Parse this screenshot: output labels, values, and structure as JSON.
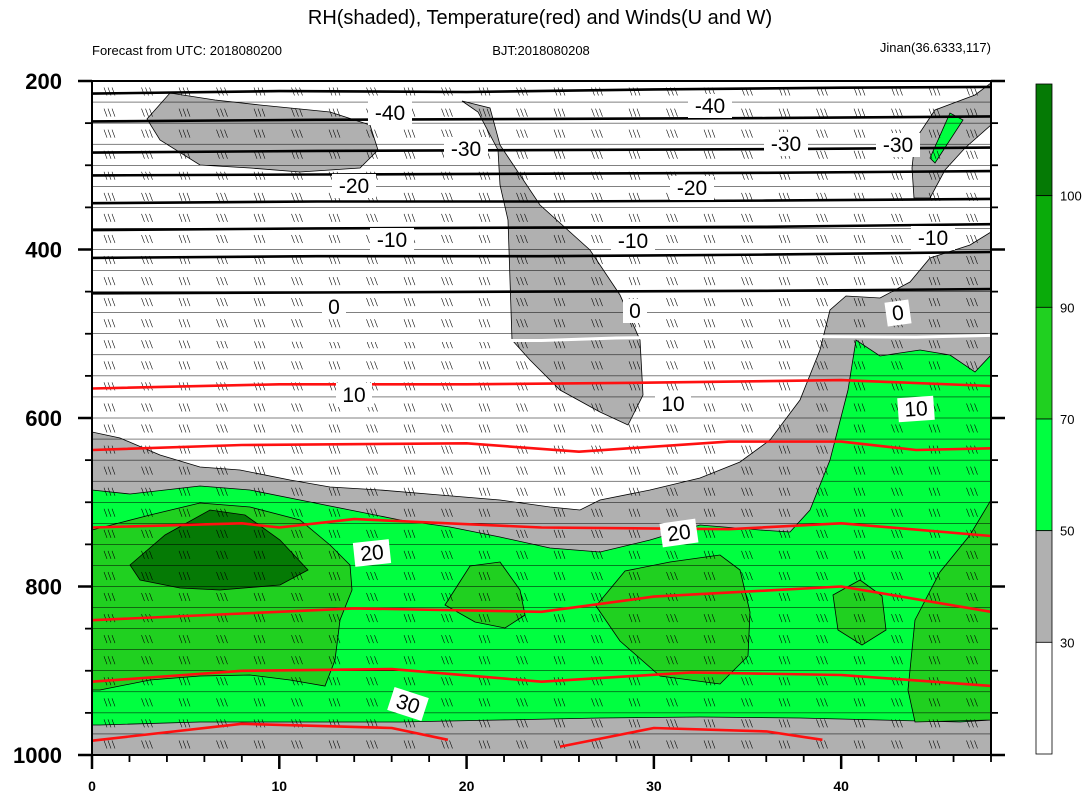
{
  "title": "RH(shaded), Temperature(red) and Winds(U and W)",
  "subtitle_left": "Forecast from UTC: 2018080200",
  "subtitle_center": "BJT:2018080208",
  "subtitle_right": "Jinan(36.6333,117)",
  "colors": {
    "rh_30_50": "#b0b0b0",
    "rh_50_70": "#00ff40",
    "rh_70_90": "#20d020",
    "rh_90_100": "#0aab0a",
    "rh_100_plus": "#057a05",
    "temp_warm": "#ff1010",
    "temp_cold": "#000000"
  },
  "chart_data": {
    "type": "heatmap",
    "x_axis": {
      "range": [
        0,
        48
      ],
      "ticks": [
        0,
        10,
        20,
        30,
        40
      ]
    },
    "y_axis": {
      "range": [
        1000,
        200
      ],
      "ticks": [
        200,
        400,
        600,
        800,
        1000
      ],
      "inverted": true
    },
    "colorbar": {
      "labels": [
        30,
        50,
        70,
        90,
        100
      ],
      "levels": [
        {
          "from": null,
          "to": 30,
          "color": "#ffffff"
        },
        {
          "from": 30,
          "to": 50,
          "color": "#b0b0b0"
        },
        {
          "from": 50,
          "to": 70,
          "color": "#00ff40"
        },
        {
          "from": 70,
          "to": 90,
          "color": "#20d020"
        },
        {
          "from": 90,
          "to": 100,
          "color": "#0aab0a"
        },
        {
          "from": 100,
          "to": null,
          "color": "#057a05"
        }
      ]
    },
    "temperature_contours": [
      {
        "level": -40,
        "color": "#000000",
        "points": [
          [
            0,
            215
          ],
          [
            10,
            212
          ],
          [
            20,
            213
          ],
          [
            30,
            210
          ],
          [
            40,
            208
          ],
          [
            48,
            207
          ]
        ]
      },
      {
        "level": -40,
        "color": "#000000",
        "points": [
          [
            0,
            248
          ],
          [
            12,
            246
          ],
          [
            24,
            245
          ],
          [
            36,
            244
          ],
          [
            48,
            242
          ]
        ]
      },
      {
        "level": -30,
        "color": "#000000",
        "points": [
          [
            0,
            285
          ],
          [
            12,
            283
          ],
          [
            24,
            282
          ],
          [
            36,
            281
          ],
          [
            48,
            279
          ]
        ]
      },
      {
        "level": -30,
        "color": "#000000",
        "points": [
          [
            0,
            312
          ],
          [
            12,
            311
          ],
          [
            24,
            310
          ],
          [
            36,
            309
          ],
          [
            48,
            307
          ]
        ]
      },
      {
        "level": -20,
        "color": "#000000",
        "points": [
          [
            0,
            345
          ],
          [
            12,
            343
          ],
          [
            24,
            343
          ],
          [
            36,
            342
          ],
          [
            48,
            340
          ]
        ]
      },
      {
        "level": -20,
        "color": "#000000",
        "points": [
          [
            0,
            377
          ],
          [
            12,
            375
          ],
          [
            24,
            374
          ],
          [
            36,
            373
          ],
          [
            48,
            370
          ]
        ]
      },
      {
        "level": -10,
        "color": "#000000",
        "points": [
          [
            0,
            410
          ],
          [
            12,
            408
          ],
          [
            24,
            408
          ],
          [
            36,
            406
          ],
          [
            48,
            403
          ]
        ]
      },
      {
        "level": -10,
        "color": "#000000",
        "points": [
          [
            0,
            452
          ],
          [
            12,
            451
          ],
          [
            24,
            450
          ],
          [
            36,
            449
          ],
          [
            48,
            447
          ]
        ]
      },
      {
        "level": 0,
        "color": "#ffffff",
        "points": [
          [
            0,
            505
          ],
          [
            12,
            508
          ],
          [
            24,
            508
          ],
          [
            28,
            505
          ],
          [
            36,
            503
          ],
          [
            44,
            504
          ],
          [
            48,
            502
          ]
        ]
      },
      {
        "level": 0,
        "color": "#ff1010",
        "points": [
          [
            0,
            565
          ],
          [
            10,
            560
          ],
          [
            20,
            560
          ],
          [
            30,
            558
          ],
          [
            40,
            555
          ],
          [
            48,
            562
          ]
        ]
      },
      {
        "level": 10,
        "color": "#ff1010",
        "points": [
          [
            0,
            638
          ],
          [
            8,
            632
          ],
          [
            20,
            630
          ],
          [
            26,
            640
          ],
          [
            34,
            628
          ],
          [
            40,
            628
          ],
          [
            44,
            638
          ],
          [
            48,
            636
          ]
        ]
      },
      {
        "level": 10,
        "color": "#ff1010",
        "points": [
          [
            0,
            730
          ],
          [
            8,
            725
          ],
          [
            10,
            730
          ],
          [
            14,
            720
          ],
          [
            24,
            730
          ],
          [
            34,
            732
          ],
          [
            40,
            725
          ],
          [
            48,
            740
          ]
        ]
      },
      {
        "level": 20,
        "color": "#ff1010",
        "points": [
          [
            0,
            840
          ],
          [
            8,
            832
          ],
          [
            14,
            826
          ],
          [
            24,
            830
          ],
          [
            30,
            812
          ],
          [
            40,
            800
          ],
          [
            48,
            830
          ]
        ]
      },
      {
        "level": 20,
        "color": "#ff1010",
        "points": [
          [
            0,
            913
          ],
          [
            8,
            900
          ],
          [
            16,
            898
          ],
          [
            24,
            913
          ],
          [
            32,
            902
          ],
          [
            40,
            905
          ],
          [
            48,
            918
          ]
        ]
      },
      {
        "level": 30,
        "color": "#ff1010",
        "points": [
          [
            0,
            983
          ],
          [
            8,
            963
          ],
          [
            16,
            968
          ],
          [
            19,
            982
          ]
        ]
      },
      {
        "level": 30,
        "color": "#ff1010",
        "points": [
          [
            25,
            990
          ],
          [
            30,
            968
          ],
          [
            36,
            972
          ],
          [
            39,
            982
          ]
        ]
      }
    ],
    "contour_labels": [
      "-40",
      "-40",
      "-30",
      "-30",
      "-30",
      "-20",
      "-20",
      "-10",
      "-10",
      "-10",
      "0",
      "0",
      "0",
      "10",
      "10",
      "10",
      "20",
      "20",
      "30"
    ]
  }
}
